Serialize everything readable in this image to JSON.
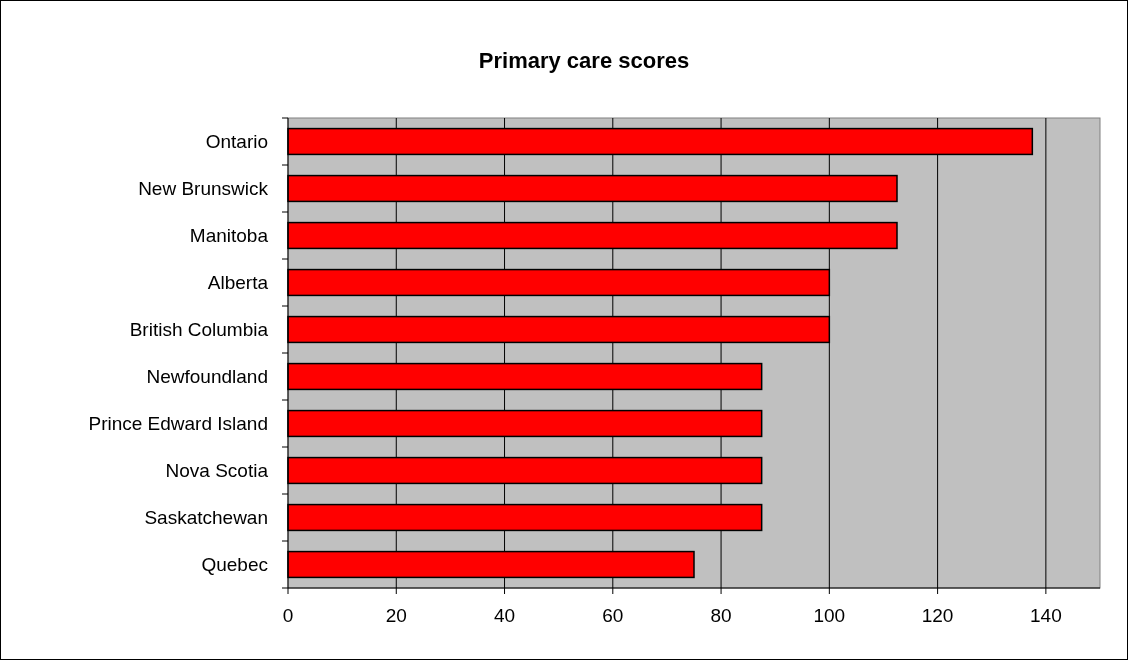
{
  "chart_data": {
    "type": "bar",
    "title": "Primary care scores",
    "orientation": "horizontal",
    "categories": [
      "Ontario",
      "New Brunswick",
      "Manitoba",
      "Alberta",
      "British Columbia",
      "Newfoundland",
      "Prince Edward Island",
      "Nova Scotia",
      "Saskatchewan",
      "Quebec"
    ],
    "values": [
      137.5,
      112.5,
      112.5,
      100,
      100,
      87.5,
      87.5,
      87.5,
      87.5,
      75
    ],
    "color": "#ff0000",
    "xlim": [
      0,
      150
    ],
    "xticks": [
      0,
      20,
      40,
      60,
      80,
      100,
      120,
      140
    ],
    "grid": "x"
  }
}
